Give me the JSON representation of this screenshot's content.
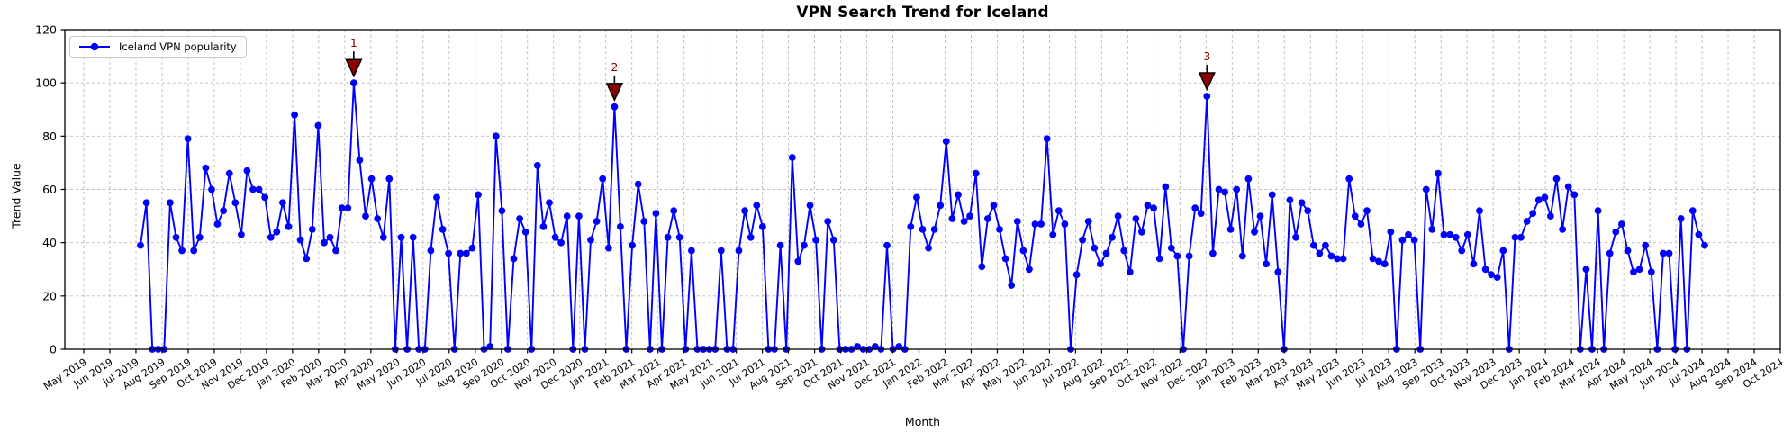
{
  "chart": {
    "title": "VPN Search Trend for Iceland",
    "xlabel": "Month",
    "ylabel": "Trend Value",
    "legend": {
      "label": "Iceland VPN popularity"
    },
    "colors": {
      "line": "#0000ff",
      "marker": "#0000ff",
      "annotation_fill": "#8b0000",
      "annotation_edge": "#000000",
      "annotation_text": "#8b0000",
      "grid": "#bbbbbb",
      "axis": "#000000",
      "background": "#ffffff"
    }
  },
  "chart_data": {
    "type": "line",
    "series_name": "Iceland VPN popularity",
    "frequency": "weekly",
    "grid": true,
    "legend_position": "upper left",
    "ylim": [
      0,
      120
    ],
    "y_ticks": [
      0,
      20,
      40,
      60,
      80,
      100,
      120
    ],
    "x_tick_labels": [
      "May 2019",
      "Jun 2019",
      "Jul 2019",
      "Aug 2019",
      "Sep 2019",
      "Oct 2019",
      "Nov 2019",
      "Dec 2019",
      "Jan 2020",
      "Feb 2020",
      "Mar 2020",
      "Apr 2020",
      "May 2020",
      "Jun 2020",
      "Jul 2020",
      "Aug 2020",
      "Sep 2020",
      "Oct 2020",
      "Nov 2020",
      "Dec 2020",
      "Jan 2021",
      "Feb 2021",
      "Mar 2021",
      "Apr 2021",
      "May 2021",
      "Jun 2021",
      "Jul 2021",
      "Aug 2021",
      "Sep 2021",
      "Oct 2021",
      "Nov 2021",
      "Dec 2021",
      "Jan 2022",
      "Feb 2022",
      "Mar 2022",
      "Apr 2022",
      "May 2022",
      "Jun 2022",
      "Jul 2022",
      "Aug 2022",
      "Sep 2022",
      "Oct 2022",
      "Nov 2022",
      "Dec 2022",
      "Jan 2023",
      "Feb 2023",
      "Mar 2023",
      "Apr 2023",
      "May 2023",
      "Jun 2023",
      "Jul 2023",
      "Aug 2023",
      "Sep 2023",
      "Oct 2023",
      "Nov 2023",
      "Dec 2023",
      "Jan 2024",
      "Feb 2024",
      "Mar 2024",
      "Apr 2024",
      "May 2024",
      "Jun 2024",
      "Jul 2024",
      "Aug 2024",
      "Sep 2024",
      "Oct 2024"
    ],
    "values": [
      39,
      55,
      0,
      0,
      0,
      55,
      42,
      37,
      79,
      37,
      42,
      68,
      60,
      47,
      52,
      66,
      55,
      43,
      67,
      60,
      60,
      57,
      42,
      44,
      55,
      46,
      88,
      41,
      34,
      45,
      84,
      40,
      42,
      37,
      53,
      53,
      100,
      71,
      50,
      64,
      49,
      42,
      64,
      0,
      42,
      0,
      42,
      0,
      0,
      37,
      57,
      45,
      36,
      0,
      36,
      36,
      38,
      58,
      0,
      1,
      80,
      52,
      0,
      34,
      49,
      44,
      0,
      69,
      46,
      55,
      42,
      40,
      50,
      0,
      50,
      0,
      41,
      48,
      64,
      38,
      91,
      46,
      0,
      39,
      62,
      48,
      0,
      51,
      0,
      42,
      52,
      42,
      0,
      37,
      0,
      0,
      0,
      0,
      37,
      0,
      0,
      37,
      52,
      42,
      54,
      46,
      0,
      0,
      39,
      0,
      72,
      33,
      39,
      54,
      41,
      0,
      48,
      41,
      0,
      0,
      0,
      1,
      0,
      0,
      1,
      0,
      39,
      0,
      1,
      0,
      46,
      57,
      45,
      38,
      45,
      54,
      78,
      49,
      58,
      48,
      50,
      66,
      31,
      49,
      54,
      45,
      34,
      24,
      48,
      37,
      30,
      47,
      47,
      79,
      43,
      52,
      47,
      0,
      28,
      41,
      48,
      38,
      32,
      36,
      42,
      50,
      37,
      29,
      49,
      44,
      54,
      53,
      34,
      61,
      38,
      35,
      0,
      35,
      53,
      51,
      95,
      36,
      60,
      59,
      45,
      60,
      35,
      64,
      44,
      50,
      32,
      58,
      29,
      0,
      56,
      42,
      55,
      52,
      39,
      36,
      39,
      35,
      34,
      34,
      64,
      50,
      47,
      52,
      34,
      33,
      32,
      44,
      0,
      41,
      43,
      41,
      0,
      60,
      45,
      66,
      43,
      43,
      42,
      37,
      43,
      32,
      52,
      30,
      28,
      27,
      37,
      0,
      42,
      42,
      48,
      51,
      56,
      57,
      50,
      64,
      45,
      61,
      58,
      0,
      30,
      0,
      52,
      0,
      36,
      44,
      47,
      37,
      29,
      30,
      39,
      29,
      0,
      36,
      36,
      0,
      49,
      0,
      52,
      43,
      39
    ],
    "annotations": [
      {
        "label": "1",
        "index": 36,
        "value": 100
      },
      {
        "label": "2",
        "index": 80,
        "value": 91
      },
      {
        "label": "3",
        "index": 180,
        "value": 95
      }
    ]
  }
}
